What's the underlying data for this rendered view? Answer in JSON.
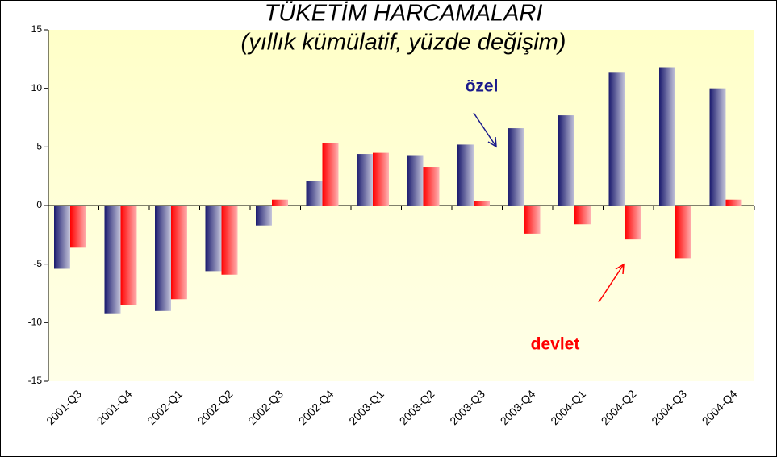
{
  "chart_data": {
    "type": "bar",
    "title": "TÜKETİM HARCAMALARI",
    "subtitle": "(yıllık kümülatif, yüzde değişim)",
    "categories": [
      "2001-Q3",
      "2001-Q4",
      "2002-Q1",
      "2002-Q2",
      "2002-Q3",
      "2002-Q4",
      "2003-Q1",
      "2003-Q2",
      "2003-Q3",
      "2003-Q4",
      "2004-Q1",
      "2004-Q2",
      "2004-Q3",
      "2004-Q4"
    ],
    "series": [
      {
        "name": "özel",
        "color": "#1a1a6e",
        "values": [
          -5.4,
          -9.2,
          -9.0,
          -5.6,
          -1.7,
          2.1,
          4.4,
          4.3,
          5.2,
          6.6,
          7.7,
          11.4,
          11.8,
          10.0
        ]
      },
      {
        "name": "devlet",
        "color": "#ff0000",
        "values": [
          -3.6,
          -8.5,
          -8.0,
          -5.9,
          0.5,
          5.3,
          4.5,
          3.3,
          0.4,
          -2.4,
          -1.6,
          -2.9,
          -4.5,
          0.5
        ]
      }
    ],
    "ylim": [
      -15,
      15
    ],
    "yticks": [
      -15,
      -10,
      -5,
      0,
      5,
      10,
      15
    ],
    "grid": false
  }
}
